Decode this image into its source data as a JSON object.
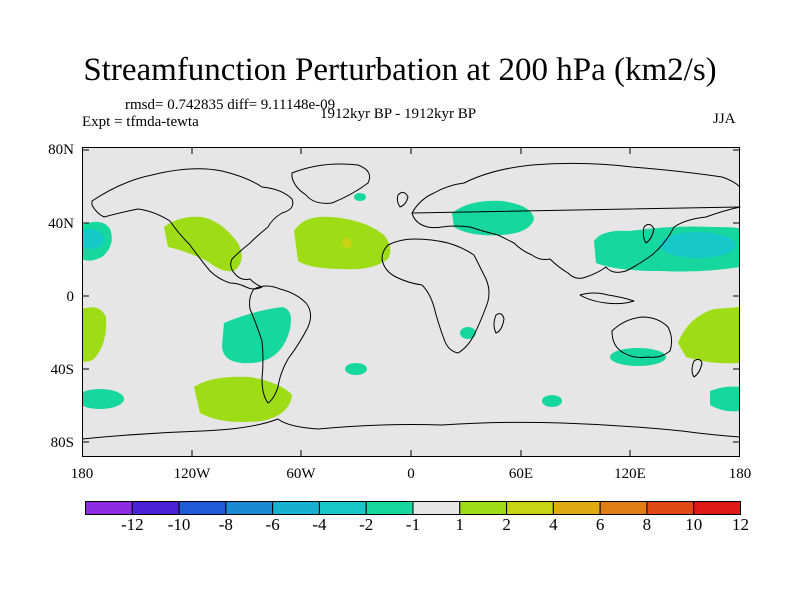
{
  "title": "Streamfunction Perturbation at 200 hPa (km2/s)",
  "stats": "rmsd= 0.742835 diff= 9.11148e-09",
  "experiment": "Expt = tfmda-tewta",
  "period": "1912kyr BP - 1912kyr BP",
  "season": "JJA",
  "lat_labels": [
    "80N",
    "40N",
    "0",
    "40S",
    "80S"
  ],
  "lon_labels": [
    "180",
    "120W",
    "60W",
    "0",
    "60E",
    "120E",
    "180"
  ],
  "colorbar": {
    "labels": [
      "-12",
      "-10",
      "-8",
      "-6",
      "-4",
      "-2",
      "-1",
      "1",
      "2",
      "4",
      "6",
      "8",
      "10",
      "12"
    ],
    "colors": [
      "#8b2be2",
      "#4b22d6",
      "#1f5ad9",
      "#1a8ad6",
      "#18b0cf",
      "#16c8c8",
      "#16d79e",
      "#e6e6e6",
      "#9edd15",
      "#c8d414",
      "#e0aa14",
      "#e07d14",
      "#e04a14",
      "#e01818"
    ]
  },
  "colors": {
    "background": "#e6e6e6",
    "positive_1_2": "#9edd15",
    "positive_2_4": "#c8d414",
    "negative_1_2": "#16d79e",
    "negative_2_4": "#16c8c8",
    "coast": "#000000"
  }
}
